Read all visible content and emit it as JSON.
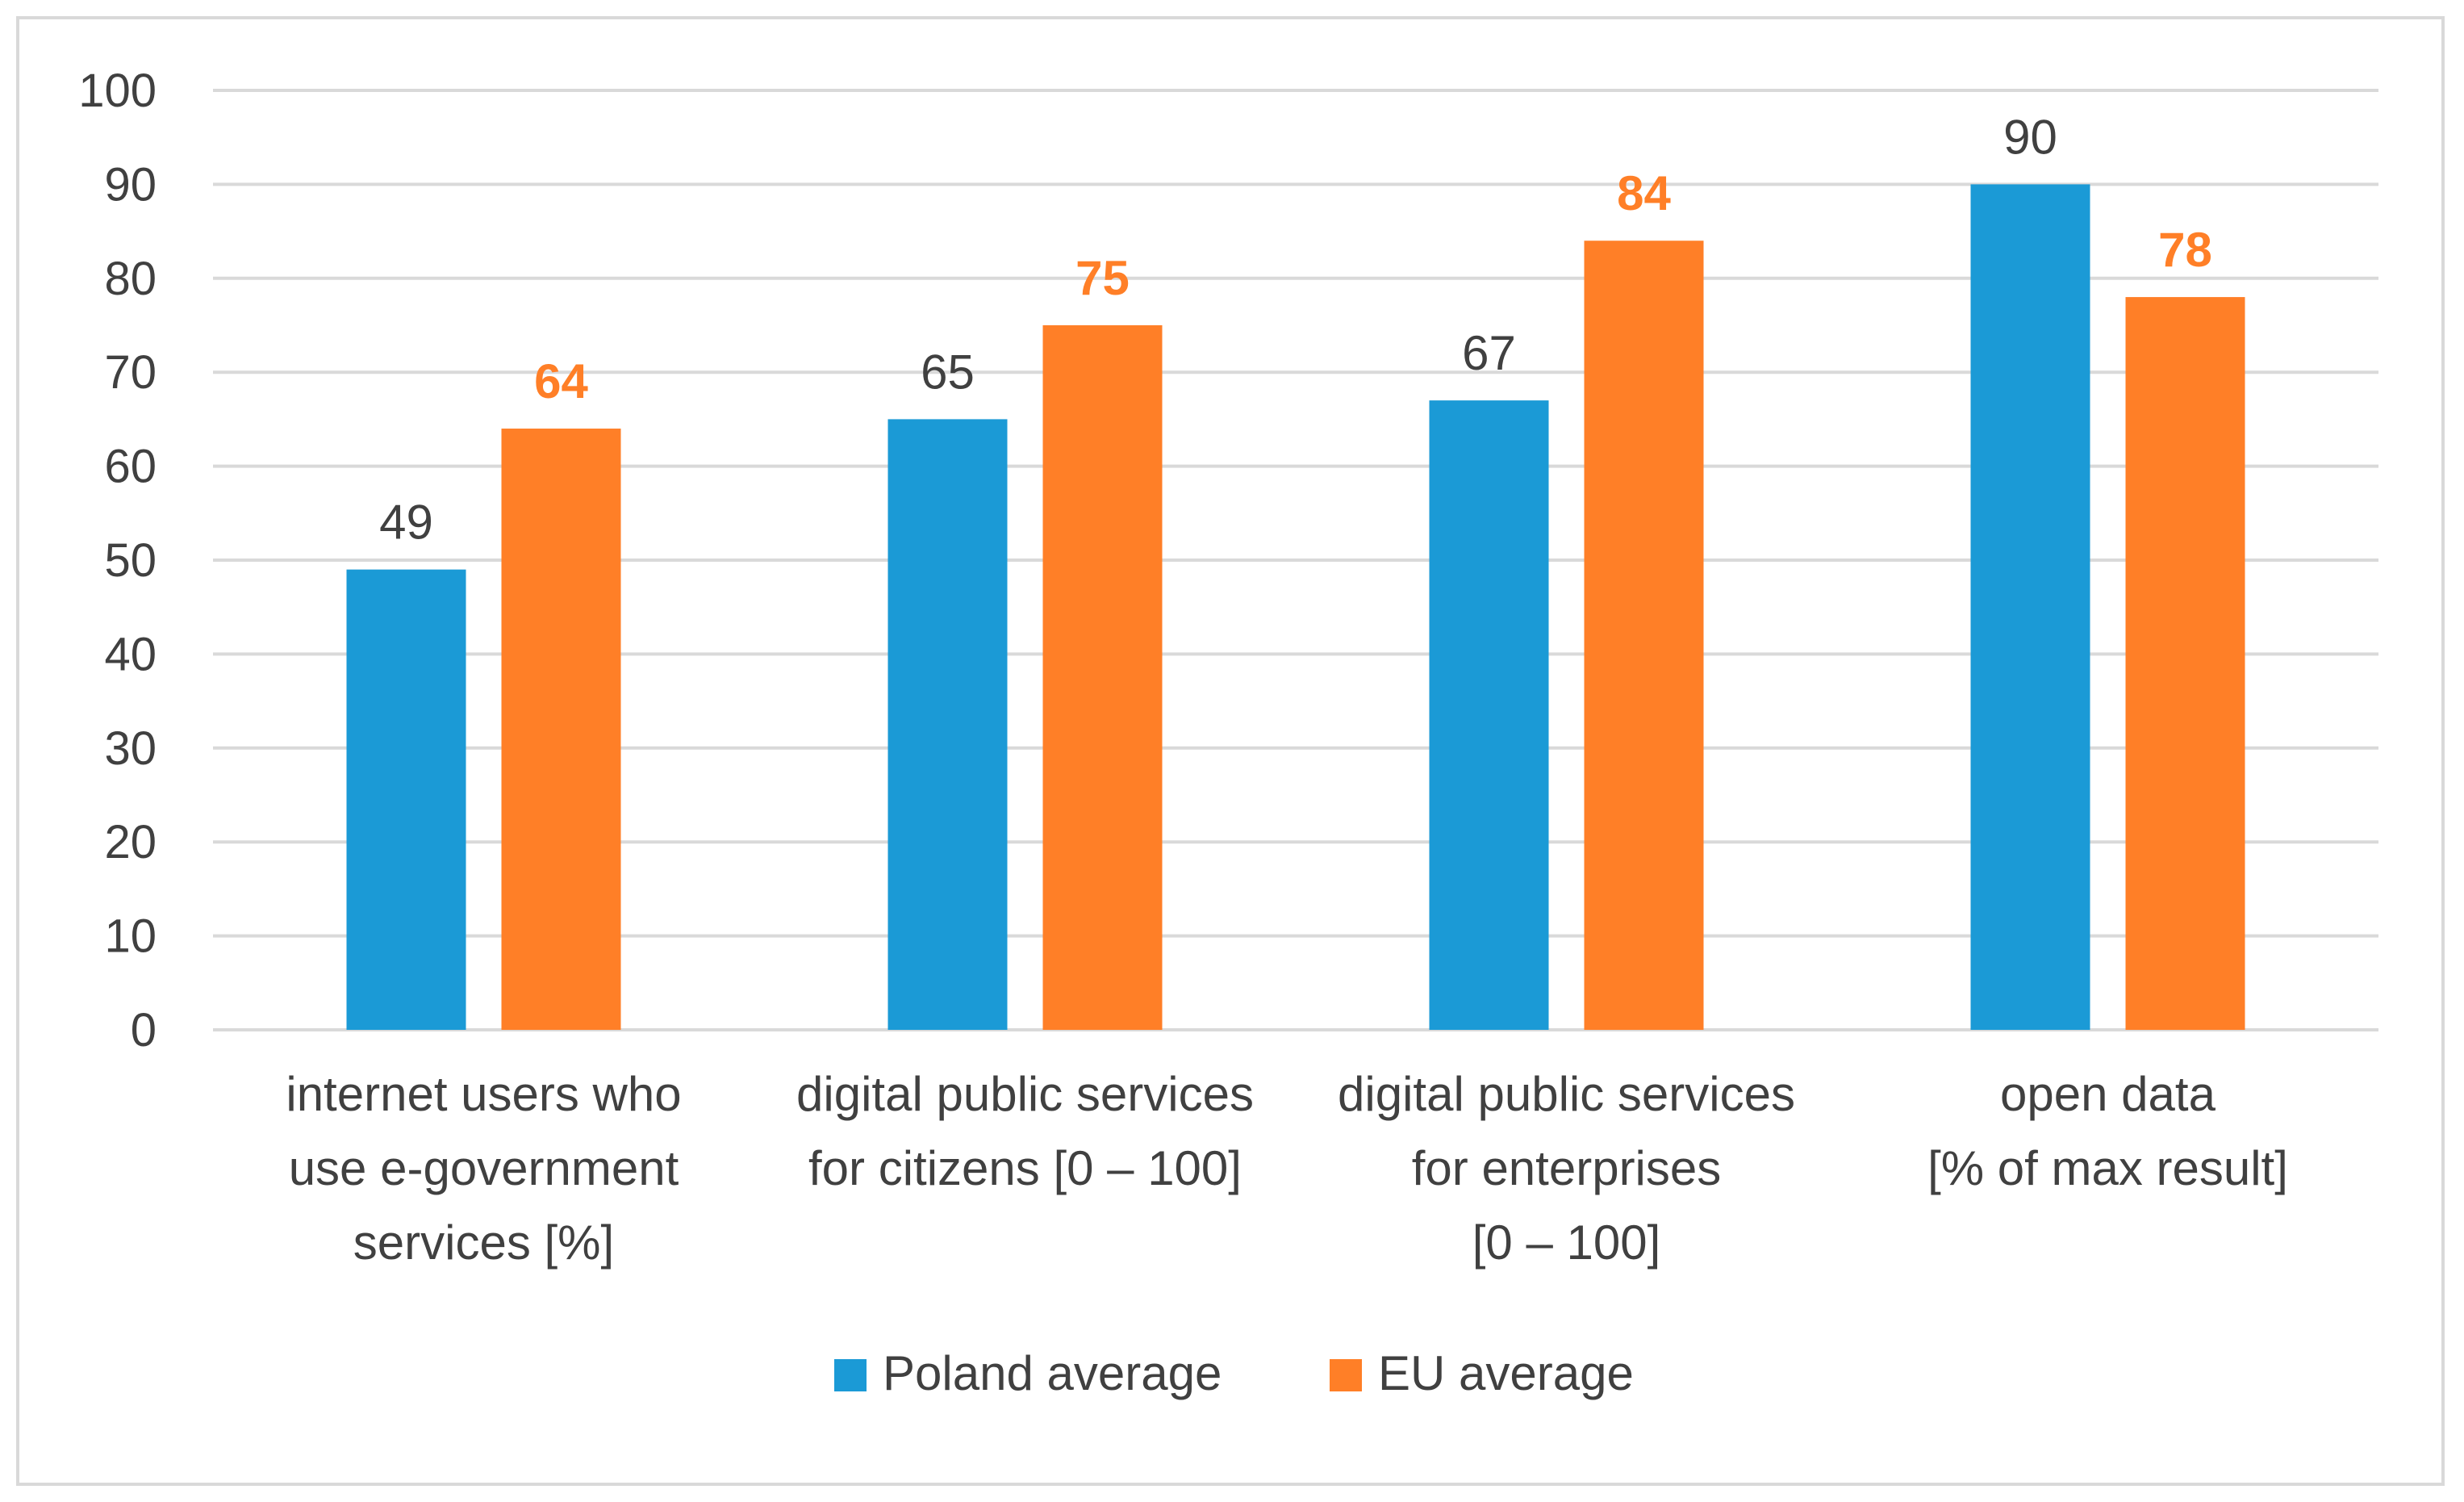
{
  "chart_data": {
    "type": "bar",
    "title": "",
    "xlabel": "",
    "ylabel": "",
    "ylim": [
      0,
      100
    ],
    "yticks": [
      0,
      10,
      20,
      30,
      40,
      50,
      60,
      70,
      80,
      90,
      100
    ],
    "grid": true,
    "legend_position": "bottom",
    "categories": [
      [
        "internet users who",
        "use e-government",
        "services [%]"
      ],
      [
        "digital public services",
        "for citizens [0 – 100]"
      ],
      [
        "digital public services",
        "for enterprises",
        "[0 – 100]"
      ],
      [
        "open data",
        "[% of max result]"
      ]
    ],
    "series": [
      {
        "name": "Poland average",
        "color": "#1b9ad6",
        "label_color": "#404040",
        "label_bold": false,
        "values": [
          49,
          65,
          67,
          90
        ]
      },
      {
        "name": "EU average",
        "color": "#ff7f27",
        "label_color": "#ff7f27",
        "label_bold": true,
        "values": [
          64,
          75,
          84,
          78
        ]
      }
    ],
    "gridline_color": "#d9d9d9",
    "tick_color": "#404040"
  }
}
